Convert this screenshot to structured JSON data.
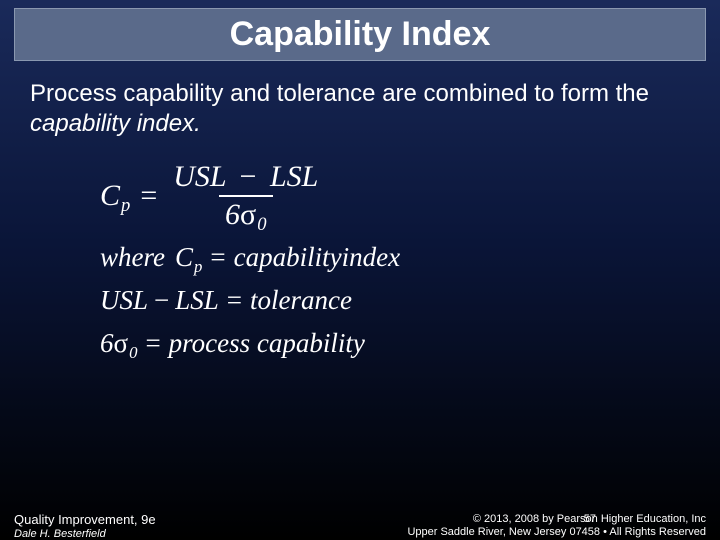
{
  "title": "Capability Index",
  "body": {
    "line1_a": "Process capability and tolerance are combined to form the ",
    "line1_b": "capability index.",
    "period": ""
  },
  "formula": {
    "cp_C": "C",
    "cp_p": "p",
    "eq": "=",
    "usl": "USL",
    "minus": "−",
    "lsl": "LSL",
    "six": "6",
    "sigma": "σ",
    "zero": "0",
    "where": "where",
    "capidx": "capabilityindex",
    "tolerance": "tolerance",
    "processcap": "process capability"
  },
  "footer": {
    "book": "Quality Improvement, 9e",
    "author": "Dale H. Besterfield",
    "copyright": "© 2013, 2008 by Pearson Higher Education, Inc",
    "address": "Upper Saddle River, New Jersey 07458 • All Rights Reserved",
    "page": "57"
  },
  "colors": {
    "title_bg": "#5a6a8a",
    "title_border": "#8a98b0",
    "text": "#ffffff",
    "bg_top": "#1a2a5a",
    "bg_mid": "#0a1538",
    "bg_bot": "#000000"
  }
}
